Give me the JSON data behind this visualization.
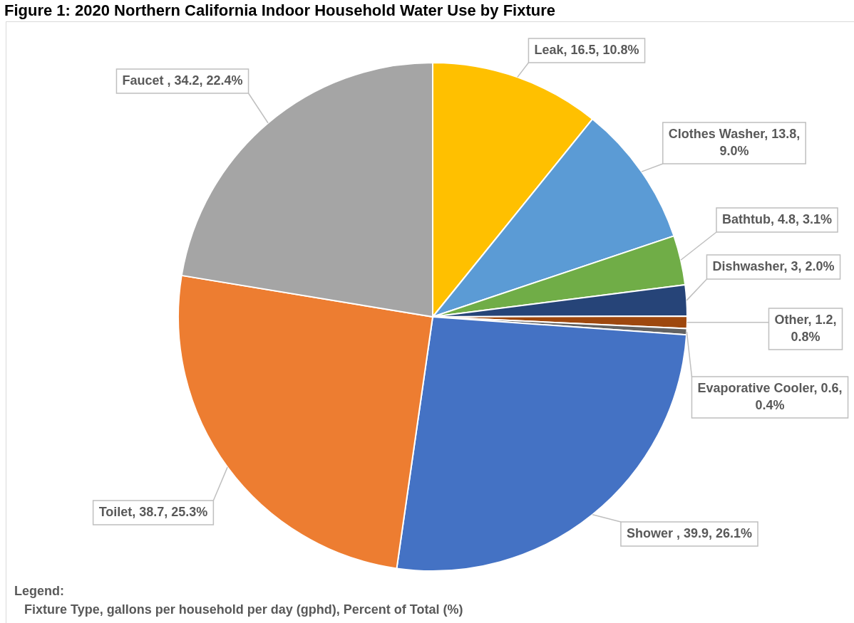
{
  "chart_data": {
    "type": "pie",
    "title": "Figure 1: 2020 Northern California Indoor Household Water Use by Fixture",
    "categories": [
      "Leak",
      "Clothes Washer",
      "Bathtub",
      "Dishwasher",
      "Other",
      "Evaporative Cooler",
      "Shower ",
      "Toilet",
      "Faucet "
    ],
    "values": [
      16.5,
      13.8,
      4.8,
      3,
      1.2,
      0.6,
      39.9,
      38.7,
      34.2
    ],
    "colors": [
      "#ffc000",
      "#5b9bd5",
      "#70ad47",
      "#264478",
      "#9e480e",
      "#636363",
      "#4472c4",
      "#ed7d31",
      "#a5a5a5"
    ],
    "value_labels": [
      "16.5, 10.8%",
      "13.8, 9.0%",
      "4.8, 3.1%",
      "3, 2.0%",
      "1.2, 0.8%",
      "0.6, 0.4%",
      "39.9, 26.1%",
      "38.7, 25.3%",
      "34.2, 22.4%"
    ],
    "annotations": [
      "Legend:",
      "Fixture Type, gallons per household per day (gphd), Percent of Total (%)"
    ]
  }
}
